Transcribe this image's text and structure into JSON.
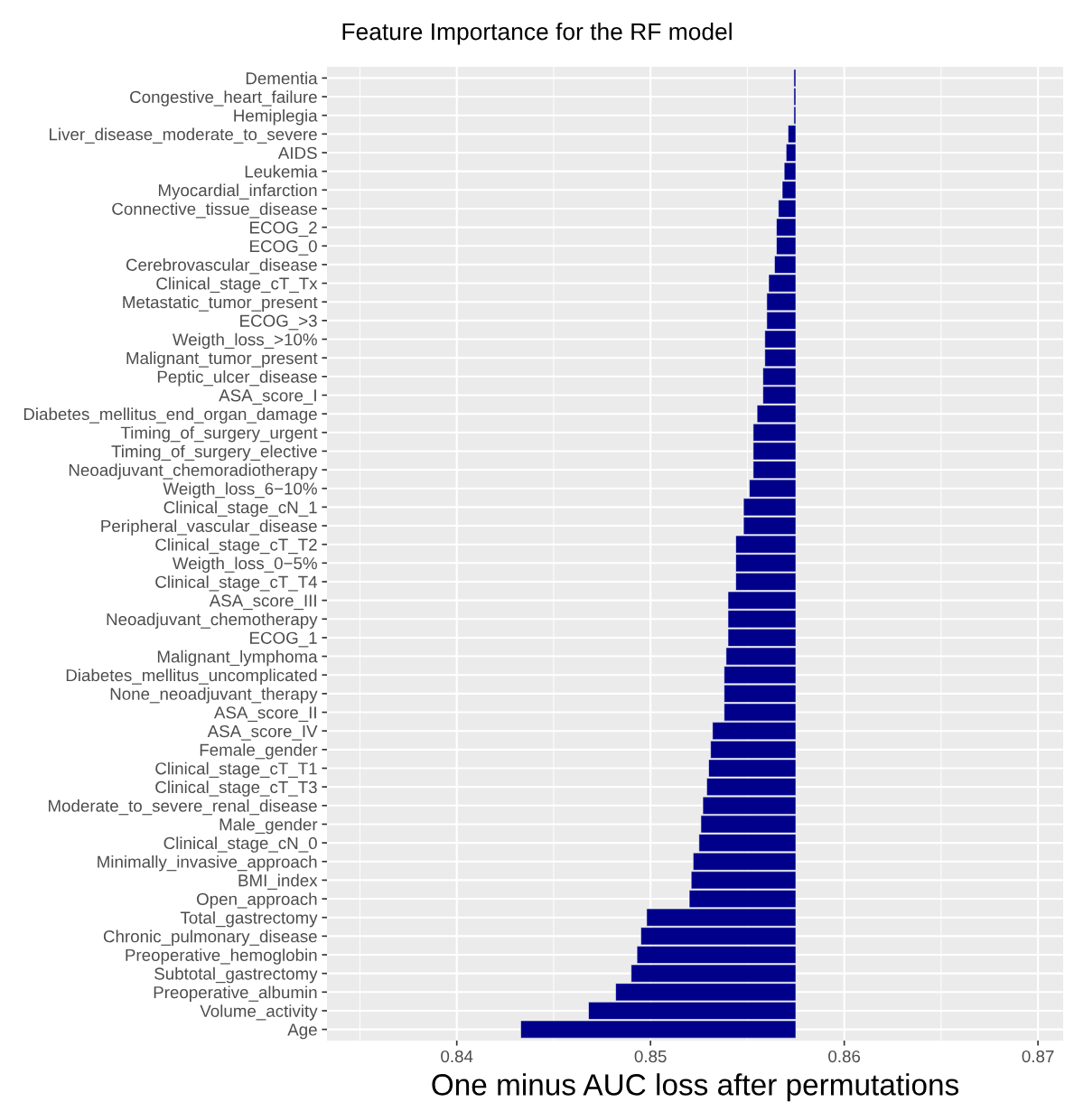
{
  "chart_data": {
    "type": "bar",
    "orientation": "horizontal",
    "title": "Feature Importance for the RF model",
    "xlabel": "One minus AUC loss after permutations",
    "categories": [
      "Dementia",
      "Congestive_heart_failure",
      "Hemiplegia",
      "Liver_disease_moderate_to_severe",
      "AIDS",
      "Leukemia",
      "Myocardial_infarction",
      "Connective_tissue_disease",
      "ECOG_2",
      "ECOG_0",
      "Cerebrovascular_disease",
      "Clinical_stage_cT_Tx",
      "Metastatic_tumor_present",
      "ECOG_>3",
      "Weigth_loss_>10%",
      "Malignant_tumor_present",
      "Peptic_ulcer_disease",
      "ASA_score_I",
      "Diabetes_mellitus_end_organ_damage",
      "Timing_of_surgery_urgent",
      "Timing_of_surgery_elective",
      "Neoadjuvant_chemoradiotherapy",
      "Weigth_loss_6−10%",
      "Clinical_stage_cN_1",
      "Peripheral_vascular_disease",
      "Clinical_stage_cT_T2",
      "Weigth_loss_0−5%",
      "Clinical_stage_cT_T4",
      "ASA_score_III",
      "Neoadjuvant_chemotherapy",
      "ECOG_1",
      "Malignant_lymphoma",
      "Diabetes_mellitus_uncomplicated",
      "None_neoadjuvant_therapy",
      "ASA_score_II",
      "ASA_score_IV",
      "Female_gender",
      "Clinical_stage_cT_T1",
      "Clinical_stage_cT_T3",
      "Moderate_to_severe_renal_disease",
      "Male_gender",
      "Clinical_stage_cN_0",
      "Minimally_invasive_approach",
      "BMI_index",
      "Open_approach",
      "Total_gastrectomy",
      "Chronic_pulmonary_disease",
      "Preoperative_hemoglobin",
      "Subtotal_gastrectomy",
      "Preoperative_albumin",
      "Volume_activity",
      "Age"
    ],
    "base": [
      0.8574,
      0.8574,
      0.8574,
      0.8571,
      0.857,
      0.8569,
      0.8568,
      0.8566,
      0.8565,
      0.8565,
      0.8564,
      0.8561,
      0.856,
      0.856,
      0.8559,
      0.8559,
      0.8558,
      0.8558,
      0.8555,
      0.8553,
      0.8553,
      0.8553,
      0.8551,
      0.8548,
      0.8548,
      0.8544,
      0.8544,
      0.8544,
      0.854,
      0.854,
      0.854,
      0.8539,
      0.8538,
      0.8538,
      0.8538,
      0.8532,
      0.8531,
      0.853,
      0.8529,
      0.8527,
      0.8526,
      0.8525,
      0.8522,
      0.8521,
      0.852,
      0.8498,
      0.8495,
      0.8493,
      0.849,
      0.8482,
      0.8468,
      0.8433
    ],
    "values": [
      0.0001,
      0.0001,
      0.0001,
      0.0004,
      0.0005,
      0.0006,
      0.0007,
      0.0009,
      0.001,
      0.001,
      0.0011,
      0.0014,
      0.0015,
      0.0015,
      0.0016,
      0.0016,
      0.0017,
      0.0017,
      0.002,
      0.0022,
      0.0022,
      0.0022,
      0.0024,
      0.0027,
      0.0027,
      0.0031,
      0.0031,
      0.0031,
      0.0035,
      0.0035,
      0.0035,
      0.0036,
      0.0037,
      0.0037,
      0.0037,
      0.0043,
      0.0044,
      0.0045,
      0.0046,
      0.0048,
      0.0049,
      0.005,
      0.0053,
      0.0054,
      0.0055,
      0.0077,
      0.008,
      0.0082,
      0.0085,
      0.0093,
      0.0107,
      0.0142
    ],
    "color": "#00008b",
    "xlim": [
      0.8333,
      0.8713
    ],
    "xticks": [
      0.84,
      0.85,
      0.86,
      0.87
    ],
    "grid": true
  }
}
